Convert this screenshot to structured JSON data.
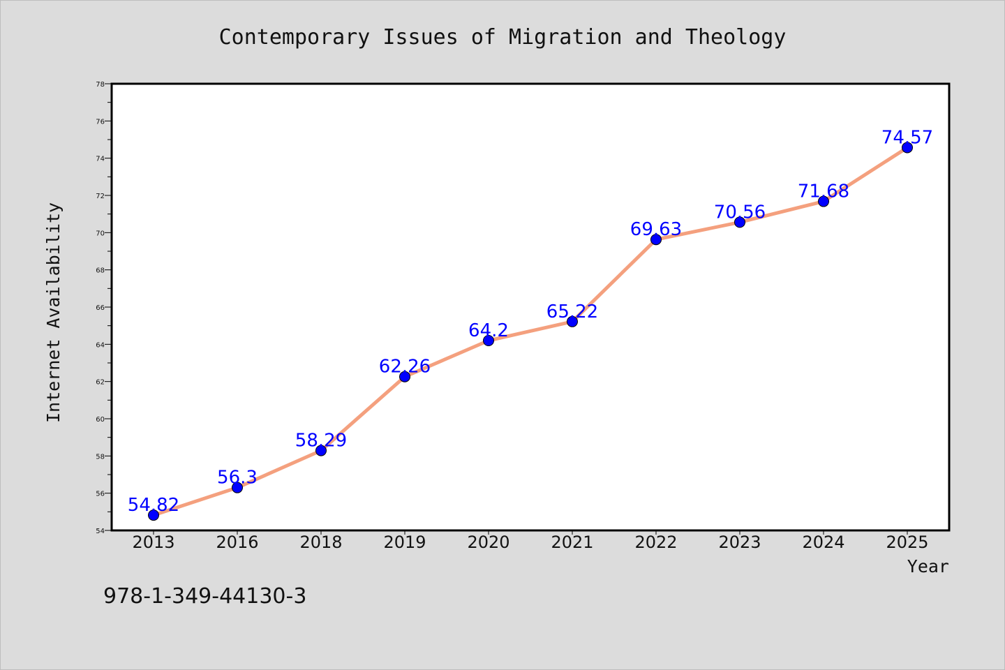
{
  "chart_data": {
    "type": "line",
    "title": "Contemporary Issues of Migration and Theology",
    "xlabel": "Year",
    "ylabel": "Internet Availability",
    "categories": [
      "2013",
      "2016",
      "2018",
      "2019",
      "2020",
      "2021",
      "2022",
      "2023",
      "2024",
      "2025"
    ],
    "series": [
      {
        "values": [
          54.82,
          56.3,
          58.29,
          62.26,
          64.2,
          65.22,
          69.63,
          70.56,
          71.68,
          74.57
        ],
        "labels": [
          "54.82",
          "56.3",
          "58.29",
          "62.26",
          "64.2",
          "65.22",
          "69.63",
          "70.56",
          "71.68",
          "74.57"
        ]
      }
    ],
    "ylim": [
      54,
      78
    ],
    "yticks": [
      "54",
      "56",
      "58",
      "60",
      "62",
      "64",
      "66",
      "68",
      "70",
      "72",
      "74",
      "76",
      "78"
    ],
    "grid": false,
    "line_color": "#f4a07e",
    "marker_color": "#0000ff",
    "label_color": "#0000ff",
    "plot_background": "#ffffff",
    "figure_background": "#dcdcdc"
  },
  "footer": {
    "isbn": "978-1-349-44130-3"
  }
}
